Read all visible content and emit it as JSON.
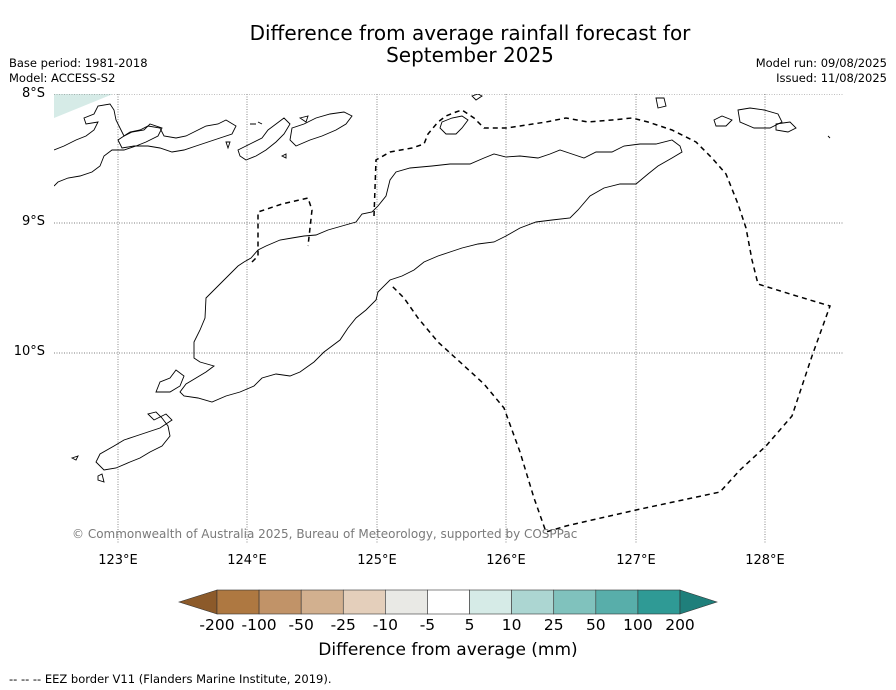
{
  "title": {
    "line1": "Difference from average rainfall forecast for",
    "line2": "September 2025"
  },
  "meta": {
    "base_period": "Base period: 1981-2018",
    "model": "Model: ACCESS-S2",
    "model_run": "Model run: 09/08/2025",
    "issued": "Issued: 11/08/2025"
  },
  "map": {
    "lat_labels": [
      "8°S",
      "9°S",
      "10°S"
    ],
    "lon_labels": [
      "123°E",
      "124°E",
      "125°E",
      "126°E",
      "127°E",
      "128°E"
    ],
    "credit": "© Commonwealth of Australia 2025, Bureau of Meteorology, supported by COSPPac",
    "shaded_region_category": "5",
    "eez_line_style": "dashed"
  },
  "colorbar": {
    "title": "Difference from average (mm)",
    "tick_labels": [
      "-200",
      "-100",
      "-50",
      "-25",
      "-10",
      "-5",
      "5",
      "10",
      "25",
      "50",
      "100",
      "200"
    ],
    "colors": [
      "#8c5a2a",
      "#ae7841",
      "#c19368",
      "#d2b08f",
      "#e4cfbb",
      "#e9e9e5",
      "#ffffff",
      "#d6ebe7",
      "#acd6d2",
      "#80c2bd",
      "#58aeaa",
      "#2f9a95",
      "#1f7f7b"
    ]
  },
  "footer": "-- -- -- EEZ border V11 (Flanders Marine Institute, 2019)."
}
